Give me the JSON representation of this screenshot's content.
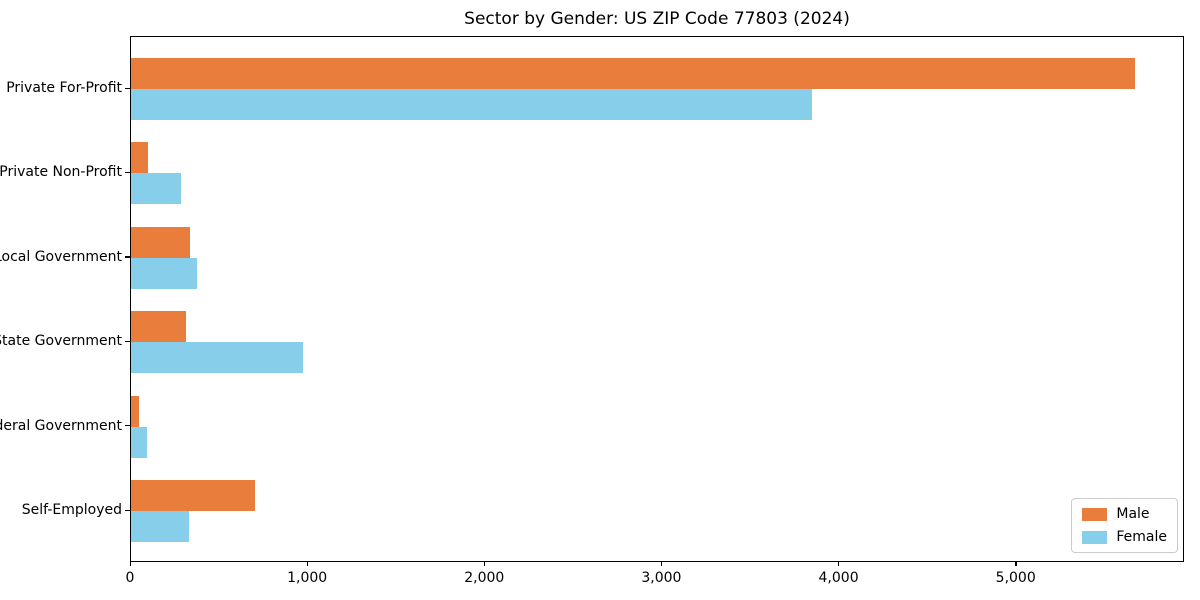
{
  "chart_data": {
    "type": "bar",
    "orientation": "horizontal",
    "title": "Sector by Gender: US ZIP Code 77803 (2024)",
    "categories": [
      "Private For-Profit",
      "Private Non-Profit",
      "Local Government",
      "State Government",
      "Federal Government",
      "Self-Employed"
    ],
    "series": [
      {
        "name": "Male",
        "color": "#e87d3c",
        "values": [
          5670,
          95,
          335,
          310,
          45,
          700
        ]
      },
      {
        "name": "Female",
        "color": "#87ceeb",
        "values": [
          3845,
          285,
          370,
          970,
          90,
          330
        ]
      }
    ],
    "xlim": [
      0,
      5950
    ],
    "xticks": [
      {
        "value": 0,
        "label": "0"
      },
      {
        "value": 1000,
        "label": "1,000"
      },
      {
        "value": 2000,
        "label": "2,000"
      },
      {
        "value": 3000,
        "label": "3,000"
      },
      {
        "value": 4000,
        "label": "4,000"
      },
      {
        "value": 5000,
        "label": "5,000"
      }
    ],
    "legend": {
      "position": "lower right"
    },
    "grid": false,
    "background_color": "#ffffff",
    "spine_color": "#000000"
  }
}
